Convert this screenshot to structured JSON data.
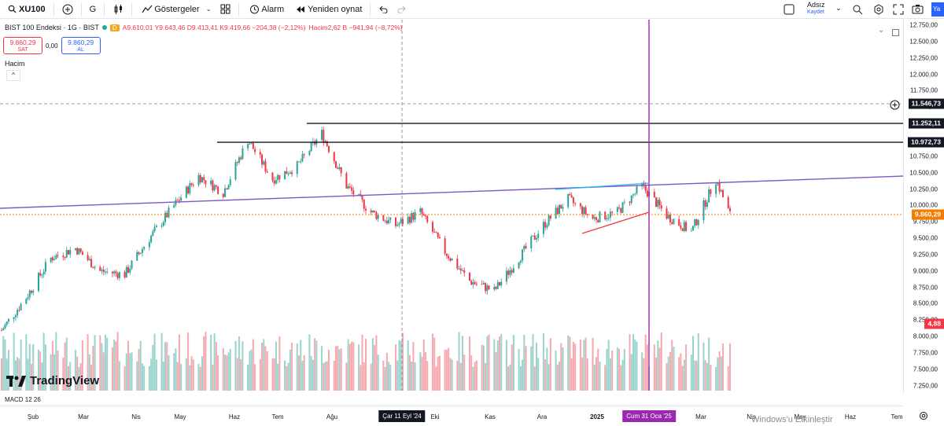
{
  "toolbar": {
    "symbol": "XU100",
    "interval": "G",
    "indicators_label": "Göstergeler",
    "alert_label": "Alarm",
    "replay_label": "Yeniden oynat",
    "layout_name": "Adsız",
    "layout_status": "Kaydet",
    "user_initial": "Ya"
  },
  "legend": {
    "title": "BIST 100 Endeksi · 1G · BIST",
    "badge": "D",
    "ohlc": "A9.610,01 Y9.643,46 D9.413,41 K9.419,66 −204,38 (−2,12%)",
    "volume": "Hacim2,62 B −941,94 (−8,72%)"
  },
  "trade": {
    "sell_price": "9.860,29",
    "sell_label": "SAT",
    "spread": "0,00",
    "buy_price": "9.860,29",
    "buy_label": "AL"
  },
  "volume_pane": {
    "label": "Hacim",
    "collapse": "^"
  },
  "price_axis": {
    "ticks": [
      "12.750,00",
      "12.500,00",
      "12.250,00",
      "12.000,00",
      "11.750,00",
      "11.500,00",
      "11.250,00",
      "11.000,00",
      "10.750,00",
      "10.500,00",
      "10.250,00",
      "10.000,00",
      "9.750,00",
      "9.500,00",
      "9.250,00",
      "9.000,00",
      "8.750,00",
      "8.500,00",
      "8.250,00",
      "8.000,00",
      "7.750,00",
      "7.500,00",
      "7.250,00"
    ],
    "labels": {
      "crosshair": "11.546,73",
      "resistance_high": "11.252,11",
      "resistance_low": "10.972,73",
      "current": "9.860,29",
      "volume": "4,88"
    }
  },
  "time_axis": {
    "labels": [
      "Şub",
      "Mar",
      "Nis",
      "May",
      "Haz",
      "Tem",
      "Ağu",
      "Eki",
      "Kas",
      "Ara",
      "2025",
      "Mar",
      "Nis",
      "May",
      "Haz",
      "Tem"
    ],
    "highlight_crosshair": "Çar 11 Eyl '24",
    "highlight_vertical": "Cum 31 Oca '25"
  },
  "indicator_pane": {
    "label": "MACD 12 26"
  },
  "branding": {
    "logo_text": "TradingView"
  },
  "watermark": "Windows'u Etkinleştir",
  "colors": {
    "up": "#26a69a",
    "down": "#f23645",
    "purple": "#9c27b0",
    "trend": "#7e57c2",
    "current": "#f57c00",
    "blue": "#2962ff"
  },
  "chart_data": {
    "type": "candlestick",
    "symbol": "BIST 100 Endeksi",
    "interval": "1G",
    "ylim": [
      7250,
      12750
    ],
    "price_levels": [
      11252.11,
      10972.73
    ],
    "crosshair_price": 11546.73,
    "current_price": 9860.29,
    "path_weekly_close": [
      [
        "2024-01-29",
        8100
      ],
      [
        "2024-02-12",
        8600
      ],
      [
        "2024-02-26",
        9200
      ],
      [
        "2024-03-11",
        9350
      ],
      [
        "2024-03-25",
        9000
      ],
      [
        "2024-04-08",
        8950
      ],
      [
        "2024-04-22",
        9500
      ],
      [
        "2024-05-06",
        10000
      ],
      [
        "2024-05-20",
        10450
      ],
      [
        "2024-06-03",
        10200
      ],
      [
        "2024-06-17",
        11000
      ],
      [
        "2024-07-01",
        10400
      ],
      [
        "2024-07-15",
        10600
      ],
      [
        "2024-07-29",
        11100
      ],
      [
        "2024-08-12",
        10300
      ],
      [
        "2024-08-26",
        9900
      ],
      [
        "2024-09-09",
        9700
      ],
      [
        "2024-09-23",
        9900
      ],
      [
        "2024-10-07",
        9300
      ],
      [
        "2024-10-21",
        8850
      ],
      [
        "2024-11-04",
        8700
      ],
      [
        "2024-11-18",
        9200
      ],
      [
        "2024-12-02",
        9700
      ],
      [
        "2024-12-16",
        10100
      ],
      [
        "2024-12-30",
        9800
      ],
      [
        "2025-01-13",
        9900
      ],
      [
        "2025-01-27",
        10300
      ],
      [
        "2025-02-10",
        9850
      ],
      [
        "2025-02-24",
        9600
      ],
      [
        "2025-03-10",
        10400
      ],
      [
        "2025-03-18",
        9860
      ]
    ]
  }
}
